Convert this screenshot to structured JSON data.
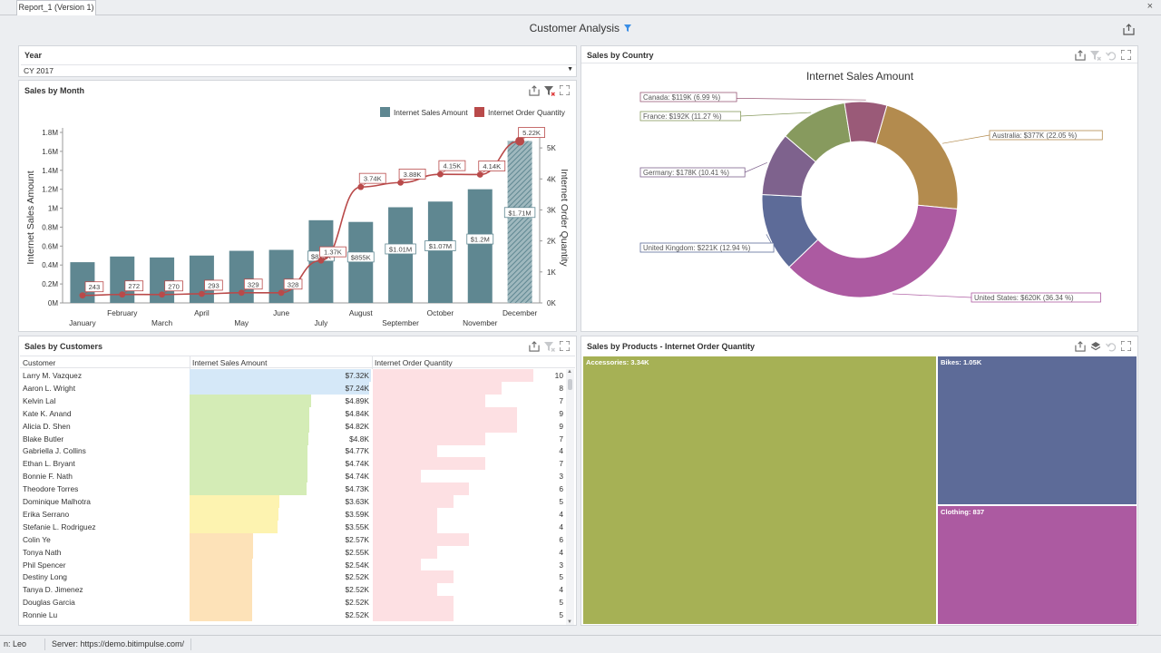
{
  "tab": {
    "label": "Report_1 (Version 1)",
    "close": "×"
  },
  "dashboard": {
    "title": "Customer Analysis"
  },
  "year": {
    "title": "Year",
    "value": "CY 2017"
  },
  "sales_by_month": {
    "title": "Sales by Month"
  },
  "sales_by_country": {
    "title": "Sales by Country"
  },
  "sales_by_customers": {
    "title": "Sales by Customers",
    "columns": [
      "Customer",
      "Internet Sales Amount",
      "Internet Order Quantity"
    ],
    "rows": [
      {
        "name": "Larry M. Vazquez",
        "amount_label": "$7.32K",
        "amount": 7.32,
        "qty": 10,
        "color": "#d5e8f8"
      },
      {
        "name": "Aaron L. Wright",
        "amount_label": "$7.24K",
        "amount": 7.24,
        "qty": 8,
        "color": "#d5e8f8"
      },
      {
        "name": "Kelvin Lal",
        "amount_label": "$4.89K",
        "amount": 4.89,
        "qty": 7,
        "color": "#d4ecb6"
      },
      {
        "name": "Kate K. Anand",
        "amount_label": "$4.84K",
        "amount": 4.84,
        "qty": 9,
        "color": "#d4ecb6"
      },
      {
        "name": "Alicia D. Shen",
        "amount_label": "$4.82K",
        "amount": 4.82,
        "qty": 9,
        "color": "#d4ecb6"
      },
      {
        "name": "Blake Butler",
        "amount_label": "$4.8K",
        "amount": 4.8,
        "qty": 7,
        "color": "#d4ecb6"
      },
      {
        "name": "Gabriella J. Collins",
        "amount_label": "$4.77K",
        "amount": 4.77,
        "qty": 4,
        "color": "#d4ecb6"
      },
      {
        "name": "Ethan L. Bryant",
        "amount_label": "$4.74K",
        "amount": 4.74,
        "qty": 7,
        "color": "#d4ecb6"
      },
      {
        "name": "Bonnie F. Nath",
        "amount_label": "$4.74K",
        "amount": 4.74,
        "qty": 3,
        "color": "#d4ecb6"
      },
      {
        "name": "Theodore Torres",
        "amount_label": "$4.73K",
        "amount": 4.73,
        "qty": 6,
        "color": "#d4ecb6"
      },
      {
        "name": "Dominique Malhotra",
        "amount_label": "$3.63K",
        "amount": 3.63,
        "qty": 5,
        "color": "#fdf3b0"
      },
      {
        "name": "Erika Serrano",
        "amount_label": "$3.59K",
        "amount": 3.59,
        "qty": 4,
        "color": "#fdf3b0"
      },
      {
        "name": "Stefanie L. Rodriguez",
        "amount_label": "$3.55K",
        "amount": 3.55,
        "qty": 4,
        "color": "#fdf3b0"
      },
      {
        "name": "Colin Ye",
        "amount_label": "$2.57K",
        "amount": 2.57,
        "qty": 6,
        "color": "#fde2b8"
      },
      {
        "name": "Tonya Nath",
        "amount_label": "$2.55K",
        "amount": 2.55,
        "qty": 4,
        "color": "#fde2b8"
      },
      {
        "name": "Phil Spencer",
        "amount_label": "$2.54K",
        "amount": 2.54,
        "qty": 3,
        "color": "#fde2b8"
      },
      {
        "name": "Destiny Long",
        "amount_label": "$2.52K",
        "amount": 2.52,
        "qty": 5,
        "color": "#fde2b8"
      },
      {
        "name": "Tanya D. Jimenez",
        "amount_label": "$2.52K",
        "amount": 2.52,
        "qty": 4,
        "color": "#fde2b8"
      },
      {
        "name": "Douglas Garcia",
        "amount_label": "$2.52K",
        "amount": 2.52,
        "qty": 5,
        "color": "#fde2b8"
      },
      {
        "name": "Ronnie Lu",
        "amount_label": "$2.52K",
        "amount": 2.52,
        "qty": 5,
        "color": "#fde2b8"
      }
    ]
  },
  "sales_by_products": {
    "title": "Sales by Products - Internet Order Quantity",
    "items": [
      {
        "label": "Accessories: 3.34K",
        "value": 3340,
        "color": "#a6b155"
      },
      {
        "label": "Bikes: 1.05K",
        "value": 1050,
        "color": "#5d6b98"
      },
      {
        "label": "Clothing: 837",
        "value": 837,
        "color": "#ac5aa1"
      }
    ]
  },
  "status": {
    "user": "n: Leo",
    "server": "Server: https://demo.bitimpulse.com/"
  },
  "colors": {
    "bar": "#5f8791",
    "line": "#b94a4a",
    "hatch": "#5f8791"
  },
  "icons": [
    "export-icon",
    "filter-clear-icon",
    "maximize-icon",
    "filter-icon",
    "undo-icon",
    "layers-icon",
    "chevron-down-icon",
    "close-icon"
  ],
  "chart_data": [
    {
      "type": "bar",
      "categories": [
        "January",
        "February",
        "March",
        "April",
        "May",
        "June",
        "July",
        "August",
        "September",
        "October",
        "November",
        "December"
      ],
      "series": [
        {
          "name": "Internet Sales Amount",
          "type": "bar",
          "axis": "left",
          "values": [
            0.43,
            0.49,
            0.48,
            0.5,
            0.55,
            0.56,
            0.873,
            0.855,
            1.01,
            1.07,
            1.2,
            1.71
          ],
          "labels": [
            "",
            "",
            "",
            "",
            "",
            "",
            "$873K",
            "$855K",
            "$1.01M",
            "$1.07M",
            "$1.2M",
            "$1.71M"
          ]
        },
        {
          "name": "Internet Order Quantity",
          "type": "line",
          "axis": "right",
          "values": [
            243,
            272,
            270,
            293,
            329,
            328,
            1370,
            3740,
            3880,
            4150,
            4140,
            5220
          ],
          "labels": [
            "243",
            "272",
            "270",
            "293",
            "329",
            "328",
            "1.37K",
            "3.74K",
            "3.88K",
            "4.15K",
            "4.14K",
            "5.22K"
          ]
        }
      ],
      "ylabel": "Internet Sales Amount",
      "y2label": "Internet Order Quantity",
      "ylim": [
        0,
        1.8
      ],
      "y2lim": [
        0,
        5500
      ],
      "yticks": [
        "0M",
        "0.2M",
        "0.4M",
        "0.6M",
        "0.8M",
        "1M",
        "1.2M",
        "1.4M",
        "1.6M",
        "1.8M"
      ],
      "y2ticks": [
        "0K",
        "1K",
        "2K",
        "3K",
        "4K",
        "5K"
      ],
      "legend": "top-right",
      "grid": false
    },
    {
      "type": "pie",
      "title": "Internet Sales Amount",
      "slices": [
        {
          "name": "Australia",
          "value": 377,
          "label": "Australia: $377K (22.05 %)",
          "color": "#b38b4e"
        },
        {
          "name": "United States",
          "value": 620,
          "label": "United States: $620K (36.34 %)",
          "color": "#ac5aa1"
        },
        {
          "name": "United Kingdom",
          "value": 221,
          "label": "United Kingdom: $221K (12.94 %)",
          "color": "#5d6b98"
        },
        {
          "name": "Germany",
          "value": 178,
          "label": "Germany: $178K (10.41 %)",
          "color": "#7e628d"
        },
        {
          "name": "France",
          "value": 192,
          "label": "France: $192K (11.27 %)",
          "color": "#879a5e"
        },
        {
          "name": "Canada",
          "value": 119,
          "label": "Canada: $119K (6.99 %)",
          "color": "#9a5a78"
        }
      ]
    }
  ]
}
